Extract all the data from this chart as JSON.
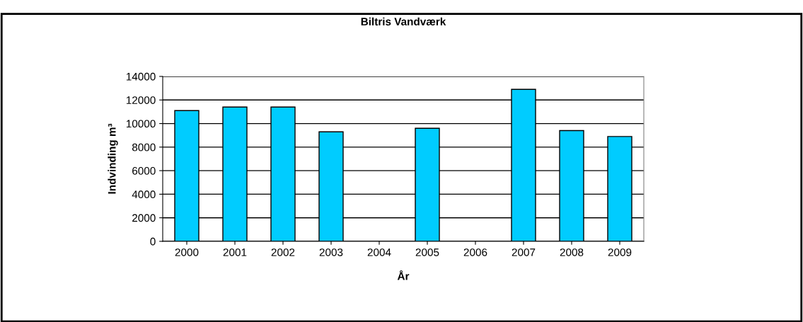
{
  "chart_data": {
    "type": "bar",
    "title": "Biltris Vandværk",
    "xlabel": "År",
    "ylabel": "Indvinding m³",
    "categories": [
      "2000",
      "2001",
      "2002",
      "2003",
      "2004",
      "2005",
      "2006",
      "2007",
      "2008",
      "2009"
    ],
    "values": [
      11100,
      11400,
      11400,
      9300,
      null,
      9600,
      null,
      12900,
      9400,
      8900
    ],
    "color": "#00ccff",
    "ylim": [
      0,
      14000
    ],
    "yticks": [
      0,
      2000,
      4000,
      6000,
      8000,
      10000,
      12000,
      14000
    ],
    "grid": "y",
    "legend": false
  }
}
